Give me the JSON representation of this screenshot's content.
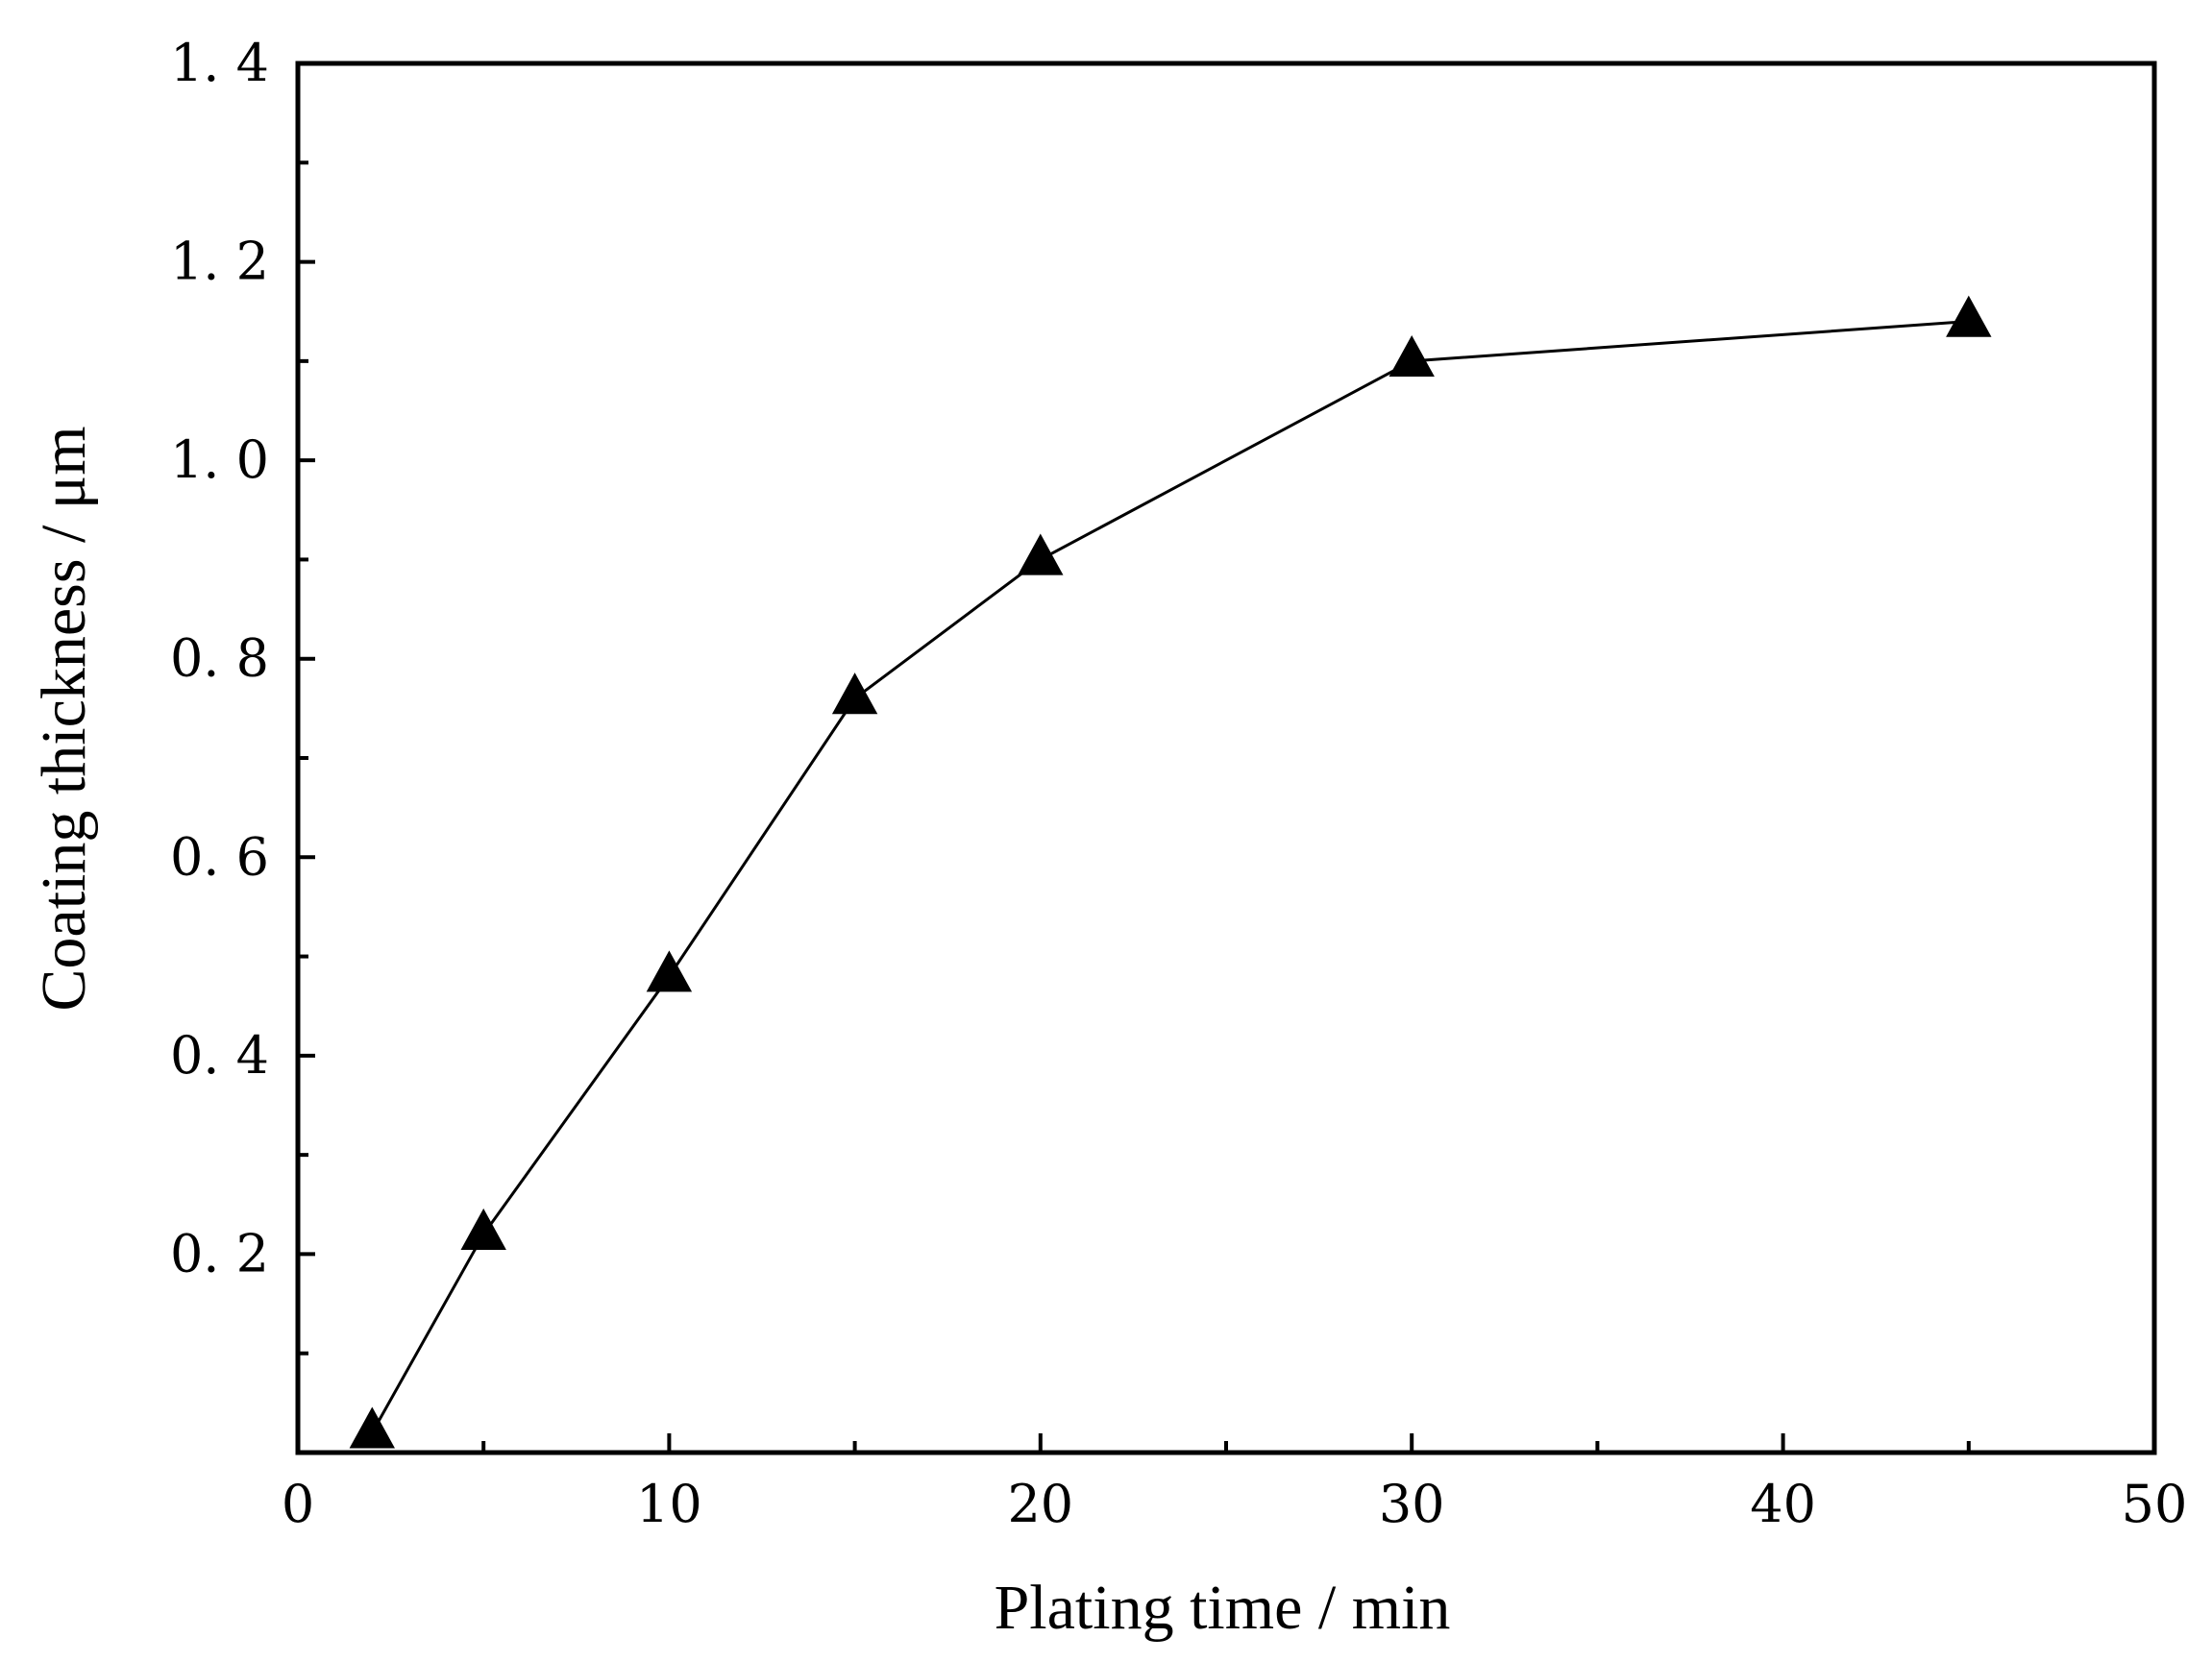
{
  "chart_data": {
    "type": "line",
    "title": "",
    "xlabel": "Plating time / min",
    "ylabel": "Coating thickness / μm",
    "xlim": [
      0,
      50
    ],
    "ylim": [
      0,
      1.4
    ],
    "x_ticks": [
      0,
      10,
      20,
      30,
      40,
      50
    ],
    "x_tick_labels": [
      "0",
      "10",
      "20",
      "30",
      "40",
      "50"
    ],
    "y_ticks": [
      0.2,
      0.4,
      0.6,
      0.8,
      1.0,
      1.2,
      1.4
    ],
    "y_tick_labels": [
      "0. 2",
      "0. 4",
      "0. 6",
      "0. 8",
      "1. 0",
      "1. 2",
      "1. 4"
    ],
    "x_minor_step": 5,
    "y_minor_step": 0.1,
    "grid": false,
    "legend": "none",
    "series": [
      {
        "marker": "triangle",
        "color": "#000000",
        "x": [
          2,
          5,
          10,
          15,
          20,
          30,
          45
        ],
        "y": [
          0.02,
          0.22,
          0.48,
          0.76,
          0.9,
          1.1,
          1.14
        ]
      }
    ]
  }
}
